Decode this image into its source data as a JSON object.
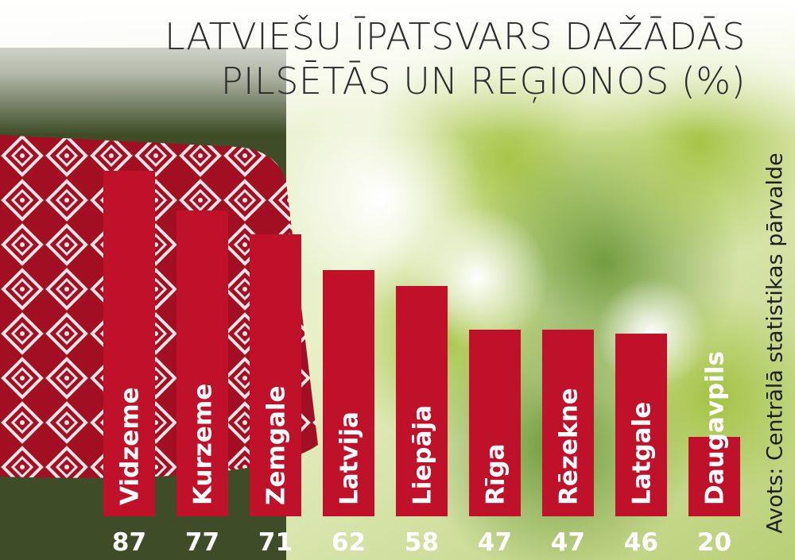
{
  "title_lines": [
    "LATVIEŠU ĪPATSVARS DAŽĀDĀS",
    "PILSĒTĀS UN REĢIONOS (%)"
  ],
  "source": "Avots: Centrālā statistikas pārvalde",
  "colors": {
    "bar": "#c0112a",
    "text": "#ffffff",
    "title": "#2b2b2b"
  },
  "chart_data": {
    "type": "bar",
    "title": "LATVIEŠU ĪPATSVARS DAŽĀDĀS PILSĒTĀS UN REĢIONOS (%)",
    "categories": [
      "Vidzeme",
      "Kurzeme",
      "Zemgale",
      "Latvija",
      "Liepāja",
      "Rīga",
      "Rēzekne",
      "Latgale",
      "Daugavpils"
    ],
    "values": [
      87,
      77,
      71,
      62,
      58,
      47,
      47,
      46,
      20
    ],
    "ylim": [
      0,
      100
    ],
    "grid": false,
    "legend": "none"
  }
}
